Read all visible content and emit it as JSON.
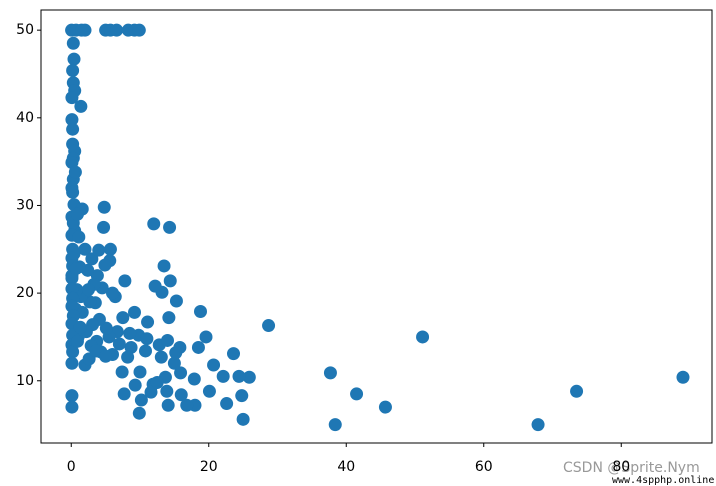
{
  "chart_data": {
    "type": "scatter",
    "x": [
      88.98,
      73.5,
      67.9,
      51.1,
      45.7,
      41.5,
      38.4,
      37.7,
      28.7,
      25.9,
      25.0,
      24.8,
      24.4,
      23.6,
      22.6,
      22.1,
      20.7,
      20.1,
      19.6,
      18.8,
      18.5,
      18.0,
      17.9,
      16.8,
      15.9,
      15.8,
      15.3,
      15.0,
      14.4,
      14.3,
      14.2,
      14.1,
      13.9,
      13.7,
      13.5,
      13.2,
      13.1,
      12.8,
      12.2,
      12.0,
      11.9,
      11.6,
      11.1,
      10.8,
      10.2,
      9.9,
      9.8,
      9.3,
      9.2,
      8.7,
      8.2,
      7.8,
      7.7,
      7.4,
      7.0,
      6.7,
      6.4,
      6.0,
      5.7,
      5.6,
      5.5,
      5.1,
      4.9,
      4.8,
      4.7,
      4.5,
      4.3,
      4.1,
      3.8,
      3.7,
      3.5,
      3.3,
      3.1,
      2.9,
      2.7,
      2.4,
      2.2,
      2.0,
      2.0,
      1.8,
      1.6,
      1.4,
      1.2,
      1.0,
      0.8,
      0.6,
      0.5,
      0.4,
      0.3,
      0.2,
      0.1,
      0.05,
      0.7,
      1.5,
      2.0,
      5.0,
      5.7,
      6.6,
      8.3,
      9.2,
      9.9,
      0.3,
      0.4,
      0.2,
      0.3,
      0.5,
      0.1,
      1.4,
      0.1,
      0.2,
      0.5,
      0.3,
      0.1,
      0.6,
      0.1,
      0.2,
      0.4,
      0.1,
      0.3,
      0.1,
      0.2,
      0.1,
      0.2,
      0.1,
      0.1,
      0.2,
      0.1,
      0.3,
      0.1,
      0.2,
      0.1,
      0.2,
      0.1,
      0.1,
      0.1,
      1.6,
      0.9,
      1.1,
      0.7,
      3.0,
      2.5,
      4.0,
      1.3,
      0.9,
      2.6,
      3.6,
      6.0,
      5.0,
      7.5,
      8.5,
      10.0,
      11.0,
      12.5,
      14.0,
      15.2,
      16.0
    ],
    "values": [
      10.4,
      8.8,
      5.0,
      15.0,
      7.0,
      8.5,
      5.0,
      10.9,
      16.3,
      10.4,
      5.6,
      8.3,
      10.5,
      13.1,
      7.4,
      10.5,
      11.8,
      8.8,
      15.0,
      17.9,
      13.8,
      7.2,
      10.2,
      7.2,
      10.9,
      13.8,
      19.1,
      12.0,
      21.4,
      27.5,
      17.2,
      7.2,
      8.8,
      10.4,
      23.1,
      20.1,
      12.7,
      14.1,
      20.8,
      27.9,
      9.6,
      8.7,
      16.7,
      13.4,
      7.8,
      6.3,
      15.2,
      9.5,
      17.8,
      13.8,
      12.7,
      21.4,
      8.5,
      11.0,
      14.2,
      15.6,
      19.6,
      20.0,
      25.0,
      23.7,
      15.0,
      16.0,
      23.2,
      29.8,
      27.5,
      20.6,
      13.3,
      17.0,
      22.0,
      14.5,
      18.9,
      21.0,
      16.4,
      14.0,
      19.0,
      22.6,
      15.6,
      25.0,
      11.8,
      20.0,
      17.8,
      19.6,
      23.0,
      15.0,
      20.4,
      18.2,
      27.1,
      24.5,
      33.0,
      37.0,
      22.0,
      50.0,
      50.0,
      50.0,
      50.0,
      50.0,
      50.0,
      50.0,
      50.0,
      50.0,
      50.0,
      48.5,
      46.7,
      45.4,
      44.0,
      43.1,
      42.3,
      41.3,
      39.8,
      38.7,
      36.2,
      35.4,
      34.9,
      33.8,
      32.0,
      31.5,
      30.1,
      28.7,
      28.0,
      26.6,
      25.0,
      24.0,
      23.1,
      21.7,
      20.5,
      19.4,
      18.5,
      17.4,
      16.5,
      15.2,
      14.1,
      13.3,
      12.0,
      8.3,
      7.0,
      29.6,
      29.0,
      26.4,
      22.8,
      23.9,
      20.4,
      24.9,
      16.1,
      14.5,
      12.5,
      13.4,
      13.0,
      12.8,
      17.2,
      15.4,
      11.0,
      14.8,
      9.8,
      14.6,
      13.2,
      8.4
    ],
    "color": "#1f77b4",
    "xlim": [
      -4.4,
      93.2
    ],
    "ylim": [
      2.9,
      52.3
    ],
    "xticks": [
      0,
      20,
      40,
      60,
      80
    ],
    "yticks": [
      10,
      20,
      30,
      40,
      50
    ]
  },
  "watermark": [
    "CSDN @Sprite.Nym",
    "www.4spphp.online"
  ]
}
